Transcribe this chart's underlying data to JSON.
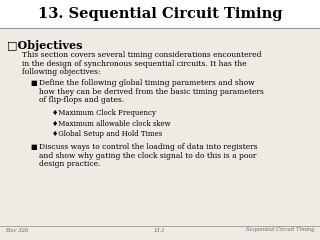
{
  "title": "13. Sequential Circuit Timing",
  "background_color": "#eeeae4",
  "title_bg": "#ffffff",
  "title_color": "#000000",
  "footer_left": "Elec 326",
  "footer_center": "13.1",
  "footer_right": "Sequential Circuit Timing",
  "section_header": "□Objectives",
  "intro_text": "This section covers several timing considerations encountered\nin the design of synchronous sequential circuits. It has the\nfollowing objectives:",
  "bullet1_text": "Define the following global timing parameters and show\nhow they can be derived from the basic timing parameters\nof flip-flops and gates.",
  "sub_bullets": [
    "♦Maximum Clock Frequency",
    "♦Maximum allowable clock skew",
    "♦Global Setup and Hold Times"
  ],
  "bullet2_text": "Discuss ways to control the loading of data into registers\nand show why gating the clock signal to do this is a poor\ndesign practice.",
  "title_fontsize": 10.5,
  "header_fontsize": 8.0,
  "body_fontsize": 5.5,
  "bullet_fontsize": 5.5,
  "sub_bullet_fontsize": 5.0,
  "footer_fontsize": 3.8
}
